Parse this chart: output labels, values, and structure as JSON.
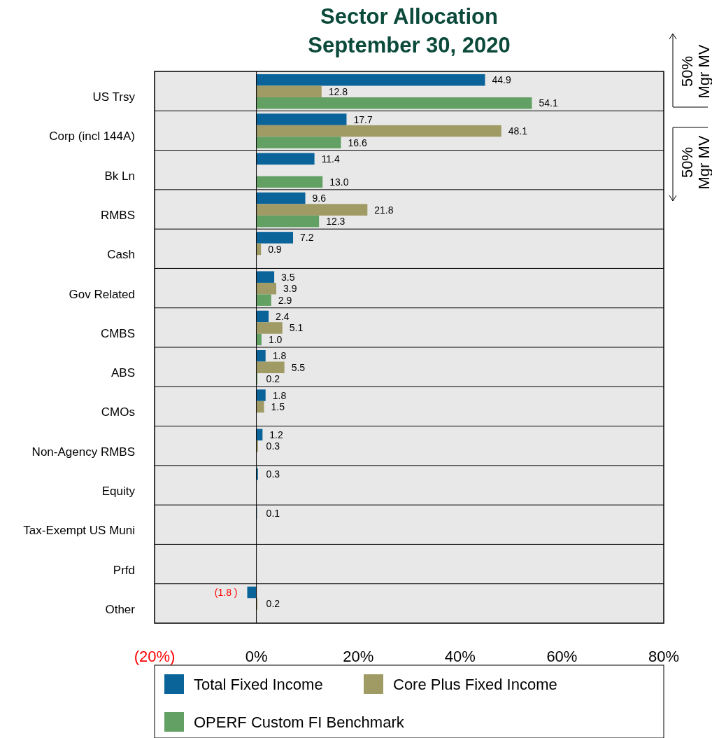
{
  "chart_data": {
    "type": "bar",
    "orientation": "horizontal",
    "title": "Sector Allocation",
    "subtitle": "September 30, 2020",
    "categories": [
      "US Trsy",
      "Corp (incl 144A)",
      "Bk Ln",
      "RMBS",
      "Cash",
      "Gov Related",
      "CMBS",
      "ABS",
      "CMOs",
      "Non-Agency RMBS",
      "Equity",
      "Tax-Exempt US Muni",
      "Prfd",
      "Other"
    ],
    "series": [
      {
        "name": "Total Fixed Income",
        "color": "#0a6399",
        "values": [
          44.9,
          17.7,
          11.4,
          9.6,
          7.2,
          3.5,
          2.4,
          1.8,
          1.8,
          1.2,
          0.3,
          0.1,
          null,
          -1.8
        ],
        "value_labels": [
          "44.9",
          "17.7",
          "11.4",
          "9.6",
          "7.2",
          "3.5",
          "2.4",
          "1.8",
          "1.8",
          "1.2",
          "0.3",
          "0.1",
          null,
          "(1.8 )"
        ]
      },
      {
        "name": "Core Plus Fixed Income",
        "color": "#a09a64",
        "values": [
          12.8,
          48.1,
          null,
          21.8,
          0.9,
          3.9,
          5.1,
          5.5,
          1.5,
          0.3,
          null,
          null,
          null,
          0.2
        ],
        "value_labels": [
          "12.8",
          "48.1",
          null,
          "21.8",
          "0.9",
          "3.9",
          "5.1",
          "5.5",
          "1.5",
          "0.3",
          null,
          null,
          null,
          "0.2"
        ]
      },
      {
        "name": "OPERF Custom FI Benchmark",
        "color": "#63a063",
        "values": [
          54.1,
          16.6,
          13.0,
          12.3,
          null,
          2.9,
          1.0,
          0.2,
          null,
          null,
          null,
          null,
          null,
          null
        ],
        "value_labels": [
          "54.1",
          "16.6",
          "13.0",
          "12.3",
          null,
          "2.9",
          "1.0",
          "0.2",
          null,
          null,
          null,
          null,
          null,
          null
        ]
      }
    ],
    "xlim": [
      -20,
      80
    ],
    "xticks": [
      {
        "value": -20,
        "label": "(20%)"
      },
      {
        "value": 0,
        "label": "0%"
      },
      {
        "value": 20,
        "label": "20%"
      },
      {
        "value": 40,
        "label": "40%"
      },
      {
        "value": 60,
        "label": "60%"
      },
      {
        "value": 80,
        "label": "80%"
      }
    ],
    "legend": "bottom",
    "annotations": [
      "50% Mgr MV",
      "50% Mgr MV"
    ]
  }
}
